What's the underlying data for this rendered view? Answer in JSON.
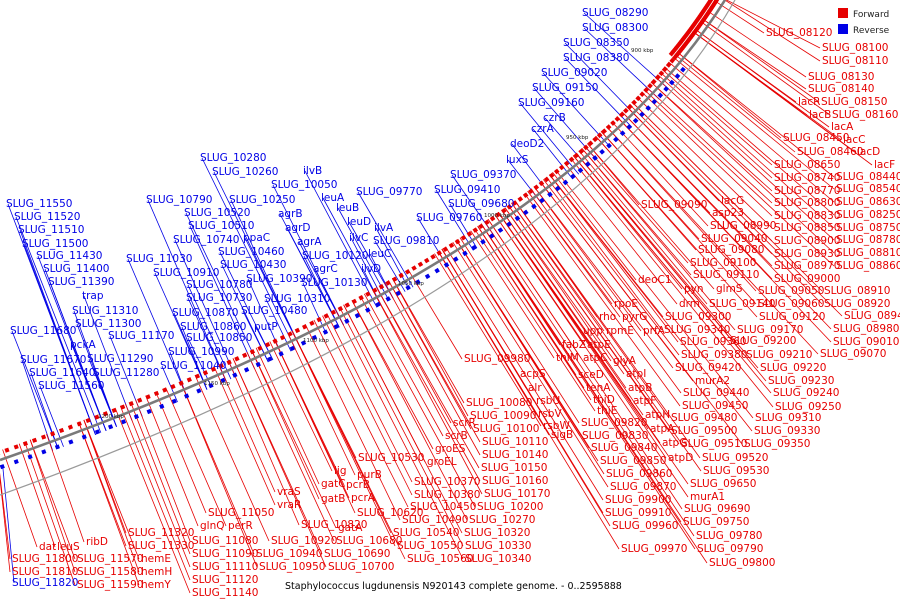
{
  "caption": "Staphylococcus lugdunensis N920143 complete genome. - 0..2595888",
  "legend": [
    {
      "label": "Forward",
      "color": "#e60000"
    },
    {
      "label": "Reverse",
      "color": "#0000e6"
    }
  ],
  "colors": {
    "forward": "#e60000",
    "reverse": "#0000e6",
    "backbone": "#777777"
  },
  "tick_labels": [
    "900 kbp",
    "950 kbp",
    "1000 kbp",
    "1050 kbp",
    "1100 kbp",
    "1150 kbp",
    "1200 kbp"
  ],
  "reverse_labels": [
    "SLUG_08290",
    "SLUG_08300",
    "SLUG_08350",
    "SLUG_08380",
    "SLUG_09020",
    "SLUG_09150",
    "SLUG_09160",
    "czrB",
    "czrA",
    "deoD2",
    "luxS",
    "SLUG_09370",
    "SLUG_09410",
    "SLUG_09680",
    "SLUG_09760",
    "SLUG_09770",
    "SLUG_09810",
    "ilvA",
    "ilvC",
    "leuC",
    "ilvD",
    "leuD",
    "leuB",
    "leuA",
    "ilvB",
    "SLUG_10050",
    "SLUG_10260",
    "SLUG_10280",
    "SLUG_10250",
    "agrB",
    "agrD",
    "agrA",
    "agrC",
    "SLUG_10120",
    "SLUG_10130",
    "SLUG_10310",
    "SLUG_10480",
    "SLUG_10390",
    "SLUG_10430",
    "SLUG_10460",
    "ppaC",
    "SLUG_10510",
    "SLUG_10520",
    "SLUG_10790",
    "SLUG_10740",
    "SLUG_11030",
    "SLUG_10910",
    "SLUG_10780",
    "SLUG_10730",
    "SLUG_10870",
    "SLUG_10860",
    "SLUG_10850",
    "putP",
    "SLUG_10990",
    "SLUG_11040",
    "SLUG_11170",
    "SLUG_11280",
    "SLUG_11290",
    "SLUG_11300",
    "SLUG_11310",
    "trap",
    "SLUG_11390",
    "SLUG_11400",
    "SLUG_11430",
    "SLUG_11500",
    "SLUG_11510",
    "SLUG_11520",
    "SLUG_11550",
    "SLUG_11680",
    "pckA",
    "SLUG_11670",
    "SLUG_11640",
    "SLUG_11560",
    "SLUG_11820"
  ],
  "forward_labels": [
    "SLUG_08120",
    "SLUG_08100",
    "SLUG_08110",
    "SLUG_08130",
    "SLUG_08140",
    "lacR",
    "SLUG_08150",
    "lacB",
    "SLUG_08160",
    "lacA",
    "SLUG_08450",
    "lacC",
    "SLUG_08460",
    "lacD",
    "lacF",
    "SLUG_08650",
    "SLUG_08440",
    "SLUG_08740",
    "SLUG_08540",
    "SLUG_08770",
    "SLUG_08800",
    "SLUG_08630",
    "SLUG_08830",
    "SLUG_08250",
    "SLUG_08850",
    "SLUG_08750",
    "SLUG_08900",
    "SLUG_08780",
    "SLUG_08930",
    "SLUG_08810",
    "SLUG_08970",
    "SLUG_08860",
    "SLUG_09000",
    "SLUG_09050",
    "SLUG_08910",
    "SLUG_09060",
    "SLUG_08920",
    "SLUG_08940",
    "SLUG_08980",
    "SLUG_09010",
    "SLUG_09070",
    "lacG",
    "asp23",
    "SLUG_08990",
    "SLUG_09040",
    "SLUG_09080",
    "SLUG_09090",
    "SLUG_09100",
    "SLUG_09110",
    "glmS",
    "deoC1",
    "pyn",
    "drm",
    "SLUG_09140",
    "SLUG_09120",
    "SLUG_09170",
    "SLUG_09200",
    "SLUG_09210",
    "SLUG_09220",
    "SLUG_09230",
    "SLUG_09240",
    "SLUG_09250",
    "SLUG_09310",
    "SLUG_09330",
    "SLUG_09350",
    "SLUG_09300",
    "rpoE",
    "rho",
    "pyrG",
    "upp",
    "rpmE",
    "prfA",
    "fabZ",
    "atpE",
    "thiM",
    "atpC",
    "glyA",
    "sceD",
    "atpI",
    "tenA",
    "atpB",
    "thiD",
    "atpF",
    "thiE",
    "atpH",
    "atpA",
    "atpG",
    "atpD",
    "SLUG_09340",
    "SLUG_09360",
    "SLUG_09380",
    "SLUG_09420",
    "murA2",
    "SLUG_09440",
    "SLUG_09450",
    "SLUG_09480",
    "SLUG_09500",
    "SLUG_09510",
    "SLUG_09520",
    "SLUG_09530",
    "SLUG_09650",
    "murA1",
    "SLUG_09690",
    "SLUG_09750",
    "SLUG_09780",
    "SLUG_09790",
    "SLUG_09800",
    "SLUG_09970",
    "SLUG_09960",
    "SLUG_09910",
    "SLUG_09900",
    "SLUG_09870",
    "SLUG_09860",
    "SLUG_09850",
    "SLUG_09840",
    "SLUG_09830",
    "SLUG_09820",
    "SLUG_09980",
    "acpS",
    "alr",
    "rsbU",
    "rsbV",
    "rsbW",
    "sigB",
    "SLUG_10080",
    "SLUG_10090",
    "SLUG_10100",
    "SLUG_10110",
    "SLUG_10140",
    "SLUG_10150",
    "SLUG_10160",
    "SLUG_10170",
    "SLUG_10200",
    "SLUG_10270",
    "SLUG_10320",
    "SLUG_10330",
    "SLUG_10340",
    "scrR",
    "scrB",
    "groES",
    "groEL",
    "SLUG_10370",
    "SLUG_10380",
    "SLUG_10450",
    "SLUG_10490",
    "SLUG_10540",
    "SLUG_10550",
    "SLUG_10560",
    "SLUG_10530",
    "lig",
    "gatC",
    "pcrB",
    "gatB",
    "purB",
    "pcrA",
    "SLUG_10620",
    "gatA",
    "SLUG_10680",
    "SLUG_10690",
    "SLUG_10700",
    "vraS",
    "vraR",
    "SLUG_10820",
    "SLUG_10920",
    "SLUG_10940",
    "SLUG_10950",
    "SLUG_11050",
    "glnQ",
    "perR",
    "SLUG_11080",
    "SLUG_11090",
    "SLUG_11110",
    "SLUG_11120",
    "SLUG_11140",
    "SLUG_11320",
    "SLUG_11330",
    "hemE",
    "hemH",
    "hemY",
    "ribD",
    "SLUG_11570",
    "SLUG_11580",
    "SLUG_11590",
    "dat",
    "leuS",
    "SLUG_11800",
    "SLUG_11810"
  ]
}
